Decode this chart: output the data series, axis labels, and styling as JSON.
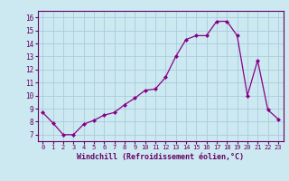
{
  "x": [
    0,
    1,
    2,
    3,
    4,
    5,
    6,
    7,
    8,
    9,
    10,
    11,
    12,
    13,
    14,
    15,
    16,
    17,
    18,
    19,
    20,
    21,
    22,
    23
  ],
  "y": [
    8.7,
    7.9,
    7.0,
    7.0,
    7.8,
    8.1,
    8.5,
    8.7,
    9.3,
    9.8,
    10.4,
    10.5,
    11.4,
    13.0,
    14.3,
    14.6,
    14.6,
    15.7,
    15.7,
    14.6,
    10.0,
    12.7,
    8.9,
    8.2
  ],
  "line_color": "#880088",
  "marker": "D",
  "marker_size": 2.0,
  "bg_color": "#cce8f0",
  "grid_color": "#aaccdd",
  "xlabel": "Windchill (Refroidissement éolien,°C)",
  "xlabel_color": "#660066",
  "tick_label_color": "#660066",
  "xlim": [
    -0.5,
    23.5
  ],
  "ylim": [
    6.5,
    16.5
  ],
  "yticks": [
    7,
    8,
    9,
    10,
    11,
    12,
    13,
    14,
    15,
    16
  ],
  "xtick_labels": [
    "0",
    "1",
    "2",
    "3",
    "4",
    "5",
    "6",
    "7",
    "8",
    "9",
    "10",
    "11",
    "12",
    "13",
    "14",
    "15",
    "16",
    "17",
    "18",
    "19",
    "20",
    "21",
    "22",
    "23"
  ],
  "spine_color": "#660066",
  "figsize": [
    3.2,
    2.0
  ],
  "dpi": 100
}
